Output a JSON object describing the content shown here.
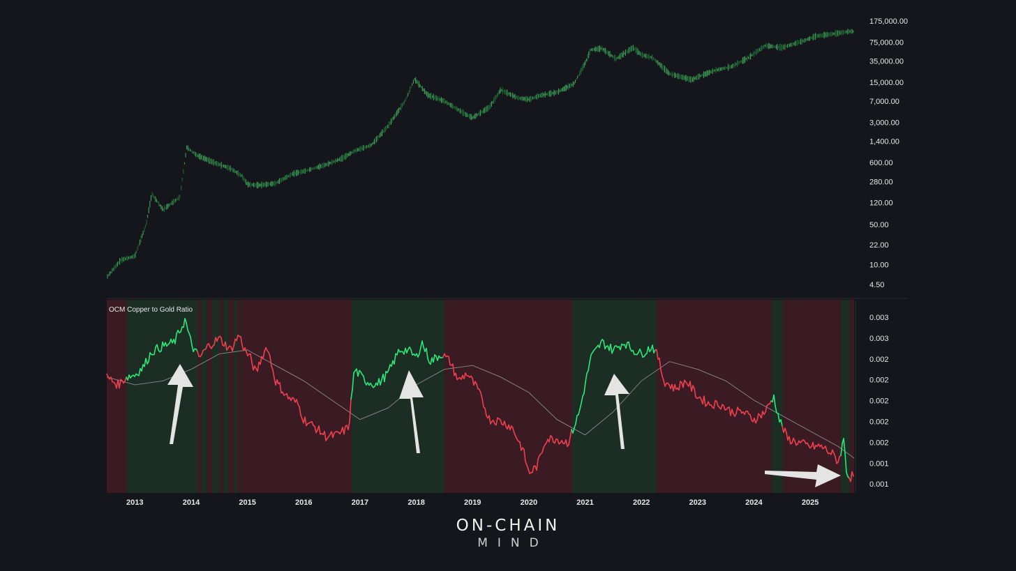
{
  "chart_data": [
    {
      "type": "line",
      "title": "",
      "scale": "log",
      "ylim": [
        4.5,
        175000
      ],
      "y_ticks": [
        "175,000.00",
        "75,000.00",
        "35,000.00",
        "15,000.00",
        "7,000.00",
        "3,000.00",
        "1,400.00",
        "600.00",
        "280.00",
        "120.00",
        "50.00",
        "22.00",
        "10.00",
        "4.50"
      ],
      "series": [
        {
          "color": "#2e8b45",
          "x": [
            2012.5,
            2012.75,
            2013.0,
            2013.2,
            2013.3,
            2013.5,
            2013.8,
            2013.92,
            2014.1,
            2014.4,
            2014.7,
            2014.9,
            2015.0,
            2015.2,
            2015.5,
            2015.8,
            2016.0,
            2016.4,
            2016.7,
            2016.9,
            2017.2,
            2017.5,
            2017.8,
            2017.97,
            2018.2,
            2018.5,
            2018.9,
            2019.0,
            2019.3,
            2019.5,
            2019.8,
            2020.0,
            2020.2,
            2020.5,
            2020.8,
            2021.0,
            2021.1,
            2021.3,
            2021.55,
            2021.85,
            2022.0,
            2022.2,
            2022.5,
            2022.9,
            2023.0,
            2023.3,
            2023.6,
            2023.9,
            2024.2,
            2024.5,
            2024.9,
            2025.1,
            2025.4,
            2025.7
          ],
          "values": [
            6,
            12,
            14,
            50,
            170,
            90,
            150,
            1100,
            800,
            600,
            470,
            350,
            250,
            240,
            260,
            380,
            420,
            550,
            720,
            950,
            1200,
            2600,
            7000,
            17000,
            9000,
            7000,
            4000,
            3600,
            5500,
            11000,
            8000,
            7500,
            8800,
            10000,
            14000,
            32000,
            55000,
            58000,
            38000,
            60000,
            45000,
            40000,
            21000,
            16500,
            18500,
            24000,
            28000,
            40000,
            65000,
            60000,
            80000,
            95000,
            104000,
            115000
          ]
        }
      ]
    },
    {
      "type": "line",
      "title": "OCM Copper to Gold Ratio",
      "ylim": [
        0.00065,
        0.00315
      ],
      "y_ticks": [
        "0.003",
        "0.003",
        "0.002",
        "0.002",
        "0.002",
        "0.002",
        "0.002",
        "0.001",
        "0.001"
      ],
      "x_ticks": [
        "2013",
        "2014",
        "2015",
        "2016",
        "2017",
        "2018",
        "2019",
        "2020",
        "2021",
        "2022",
        "2023",
        "2024",
        "2025"
      ],
      "regime_bands": [
        {
          "from": 2012.5,
          "to": 2012.85,
          "state": "bear"
        },
        {
          "from": 2012.85,
          "to": 2014.12,
          "state": "bull"
        },
        {
          "from": 2014.12,
          "to": 2014.9,
          "state": "mixed"
        },
        {
          "from": 2014.9,
          "to": 2016.85,
          "state": "bear"
        },
        {
          "from": 2016.85,
          "to": 2018.5,
          "state": "bull"
        },
        {
          "from": 2018.5,
          "to": 2020.77,
          "state": "bear"
        },
        {
          "from": 2020.77,
          "to": 2022.27,
          "state": "bull"
        },
        {
          "from": 2022.27,
          "to": 2024.32,
          "state": "bear"
        },
        {
          "from": 2024.32,
          "to": 2024.52,
          "state": "bull"
        },
        {
          "from": 2024.52,
          "to": 2025.55,
          "state": "bear"
        },
        {
          "from": 2025.55,
          "to": 2025.7,
          "state": "bull"
        },
        {
          "from": 2025.7,
          "to": 2025.78,
          "state": "bear"
        }
      ],
      "series": [
        {
          "color_up": "#2ee67a",
          "color_down": "#f0404e",
          "x": [
            2012.5,
            2012.7,
            2012.85,
            2013.0,
            2013.15,
            2013.3,
            2013.5,
            2013.7,
            2013.9,
            2013.95,
            2014.05,
            2014.15,
            2014.3,
            2014.5,
            2014.7,
            2014.85,
            2014.95,
            2015.05,
            2015.15,
            2015.25,
            2015.35,
            2015.5,
            2015.7,
            2015.9,
            2016.0,
            2016.2,
            2016.4,
            2016.6,
            2016.8,
            2016.85,
            2016.9,
            2017.1,
            2017.3,
            2017.5,
            2017.7,
            2017.85,
            2018.0,
            2018.1,
            2018.25,
            2018.45,
            2018.6,
            2018.75,
            2018.9,
            2019.1,
            2019.3,
            2019.5,
            2019.7,
            2019.9,
            2020.0,
            2020.15,
            2020.3,
            2020.5,
            2020.7,
            2020.8,
            2020.9,
            2021.1,
            2021.3,
            2021.5,
            2021.7,
            2021.85,
            2022.0,
            2022.2,
            2022.3,
            2022.4,
            2022.6,
            2022.8,
            2023.0,
            2023.2,
            2023.4,
            2023.6,
            2023.8,
            2024.0,
            2024.2,
            2024.35,
            2024.45,
            2024.6,
            2024.8,
            2025.0,
            2025.2,
            2025.4,
            2025.5,
            2025.6,
            2025.65,
            2025.7,
            2025.78
          ],
          "values": [
            0.00215,
            0.00205,
            0.00215,
            0.00218,
            0.00228,
            0.00248,
            0.00255,
            0.0026,
            0.0029,
            0.0027,
            0.0025,
            0.0024,
            0.00255,
            0.00265,
            0.0025,
            0.0027,
            0.0025,
            0.0024,
            0.0022,
            0.0024,
            0.00255,
            0.0021,
            0.0019,
            0.0018,
            0.0016,
            0.0015,
            0.00138,
            0.0014,
            0.0015,
            0.0019,
            0.00225,
            0.0021,
            0.00205,
            0.0022,
            0.0025,
            0.0025,
            0.0024,
            0.0026,
            0.00235,
            0.00245,
            0.00235,
            0.0021,
            0.0022,
            0.00198,
            0.0016,
            0.00158,
            0.0015,
            0.0012,
            0.0009,
            0.001,
            0.00135,
            0.00135,
            0.0013,
            0.0015,
            0.0017,
            0.0024,
            0.0026,
            0.0025,
            0.0026,
            0.0025,
            0.00245,
            0.00255,
            0.0024,
            0.0021,
            0.002,
            0.0021,
            0.0019,
            0.0018,
            0.0018,
            0.0017,
            0.0017,
            0.0016,
            0.0017,
            0.0019,
            0.0016,
            0.00135,
            0.0013,
            0.00125,
            0.00125,
            0.00115,
            0.00105,
            0.00135,
            0.0009,
            0.00085,
            0.00088
          ]
        },
        {
          "color": "#8a8a8a",
          "x": [
            2012.5,
            2013.0,
            2013.5,
            2014.0,
            2014.5,
            2015.0,
            2015.5,
            2016.0,
            2016.5,
            2017.0,
            2017.5,
            2018.0,
            2018.5,
            2019.0,
            2019.5,
            2020.0,
            2020.5,
            2021.0,
            2021.5,
            2022.0,
            2022.5,
            2023.0,
            2023.5,
            2024.0,
            2024.5,
            2025.0,
            2025.5,
            2025.78
          ],
          "values": [
            0.00215,
            0.00205,
            0.0021,
            0.00225,
            0.00245,
            0.0025,
            0.0023,
            0.0021,
            0.00185,
            0.0016,
            0.00175,
            0.00205,
            0.00225,
            0.0023,
            0.00215,
            0.00195,
            0.0016,
            0.0014,
            0.0017,
            0.0021,
            0.00235,
            0.00225,
            0.0021,
            0.00185,
            0.00165,
            0.00145,
            0.00125,
            0.0011
          ]
        }
      ]
    }
  ],
  "brand": {
    "top": "ON-CHAIN",
    "bottom": "MIND"
  },
  "colors": {
    "background": "#15151c",
    "bull_band": "#1c2e23",
    "bear_band": "#3a1b24",
    "arrow": "#e4e4e4"
  }
}
